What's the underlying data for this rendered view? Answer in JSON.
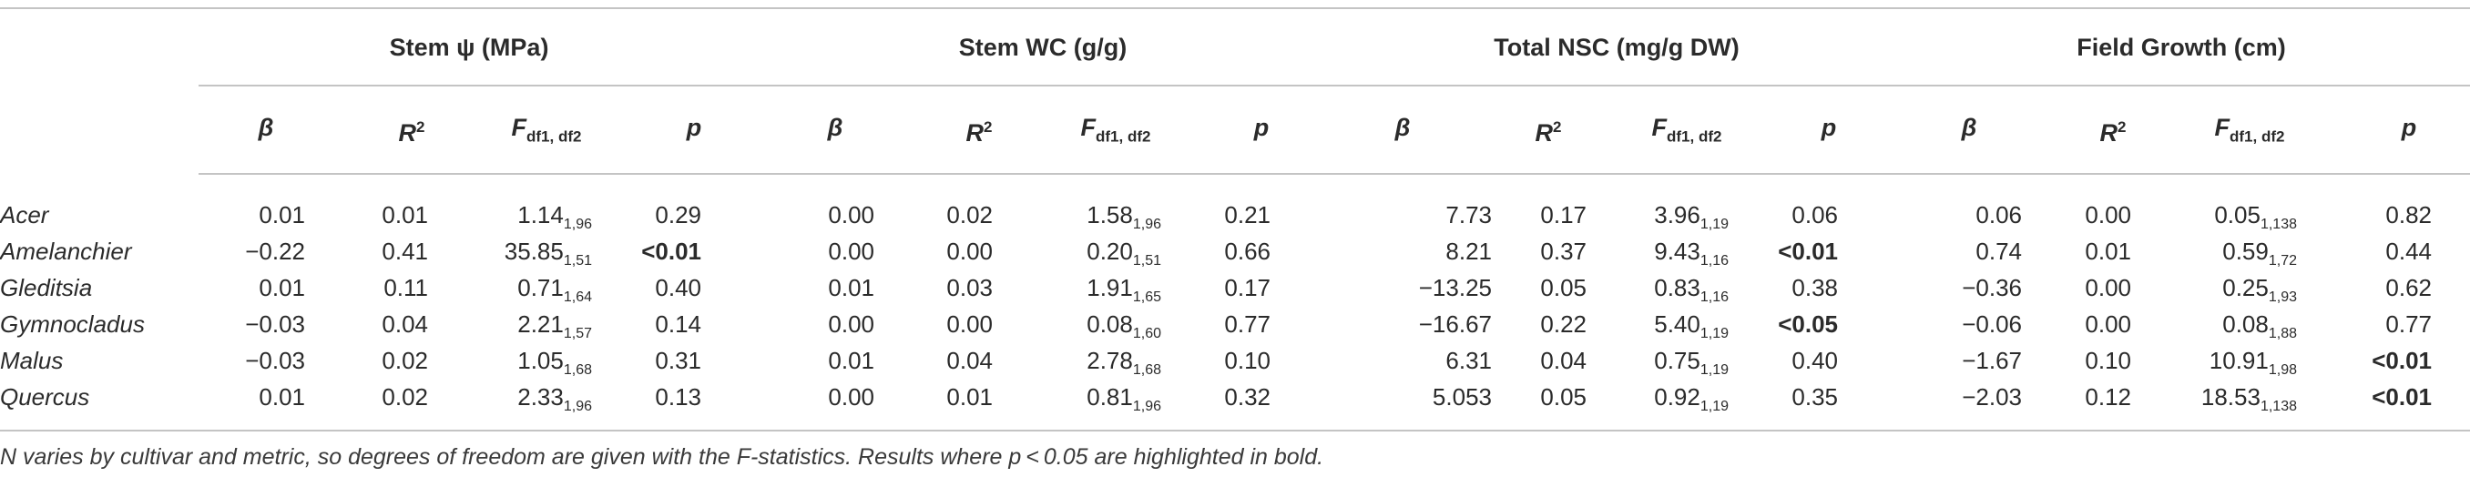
{
  "groups": [
    {
      "label": "Stem ψ  (MPa)"
    },
    {
      "label": "Stem WC (g/g)"
    },
    {
      "label": "Total NSC (mg/g DW)"
    },
    {
      "label": "Field Growth (cm)"
    }
  ],
  "col_headers": {
    "beta": "β",
    "r": "R",
    "r_sup": "2",
    "f": "F",
    "f_sub": "df1, df2",
    "p": "p"
  },
  "rows": [
    {
      "name": "Acer",
      "cells": [
        {
          "v": "0.01"
        },
        {
          "v": "0.01"
        },
        {
          "v": "1.14",
          "s": "1,96"
        },
        {
          "v": "0.29"
        },
        {
          "v": "0.00"
        },
        {
          "v": "0.02"
        },
        {
          "v": "1.58",
          "s": "1,96"
        },
        {
          "v": "0.21"
        },
        {
          "v": "7.73"
        },
        {
          "v": "0.17"
        },
        {
          "v": "3.96",
          "s": "1,19"
        },
        {
          "v": "0.06"
        },
        {
          "v": "0.06"
        },
        {
          "v": "0.00"
        },
        {
          "v": "0.05",
          "s": "1,138"
        },
        {
          "v": "0.82"
        }
      ]
    },
    {
      "name": "Amelanchier",
      "cells": [
        {
          "v": "−0.22"
        },
        {
          "v": "0.41"
        },
        {
          "v": "35.85",
          "s": "1,51"
        },
        {
          "v": "<0.01",
          "b": true
        },
        {
          "v": "0.00"
        },
        {
          "v": "0.00"
        },
        {
          "v": "0.20",
          "s": "1,51"
        },
        {
          "v": "0.66"
        },
        {
          "v": "8.21"
        },
        {
          "v": "0.37"
        },
        {
          "v": "9.43",
          "s": "1,16"
        },
        {
          "v": "<0.01",
          "b": true
        },
        {
          "v": "0.74"
        },
        {
          "v": "0.01"
        },
        {
          "v": "0.59",
          "s": "1,72"
        },
        {
          "v": "0.44"
        }
      ]
    },
    {
      "name": "Gleditsia",
      "cells": [
        {
          "v": "0.01"
        },
        {
          "v": "0.11"
        },
        {
          "v": "0.71",
          "s": "1,64"
        },
        {
          "v": "0.40"
        },
        {
          "v": "0.01"
        },
        {
          "v": "0.03"
        },
        {
          "v": "1.91",
          "s": "1,65"
        },
        {
          "v": "0.17"
        },
        {
          "v": "−13.25"
        },
        {
          "v": "0.05"
        },
        {
          "v": "0.83",
          "s": "1,16"
        },
        {
          "v": "0.38"
        },
        {
          "v": "−0.36"
        },
        {
          "v": "0.00"
        },
        {
          "v": "0.25",
          "s": "1,93"
        },
        {
          "v": "0.62"
        }
      ]
    },
    {
      "name": "Gymnocladus",
      "cells": [
        {
          "v": "−0.03"
        },
        {
          "v": "0.04"
        },
        {
          "v": "2.21",
          "s": "1,57"
        },
        {
          "v": "0.14"
        },
        {
          "v": "0.00"
        },
        {
          "v": "0.00"
        },
        {
          "v": "0.08",
          "s": "1,60"
        },
        {
          "v": "0.77"
        },
        {
          "v": "−16.67"
        },
        {
          "v": "0.22"
        },
        {
          "v": "5.40",
          "s": "1,19"
        },
        {
          "v": "<0.05",
          "b": true
        },
        {
          "v": "−0.06"
        },
        {
          "v": "0.00"
        },
        {
          "v": "0.08",
          "s": "1,88"
        },
        {
          "v": "0.77"
        }
      ]
    },
    {
      "name": "Malus",
      "cells": [
        {
          "v": "−0.03"
        },
        {
          "v": "0.02"
        },
        {
          "v": "1.05",
          "s": "1,68"
        },
        {
          "v": "0.31"
        },
        {
          "v": "0.01"
        },
        {
          "v": "0.04"
        },
        {
          "v": "2.78",
          "s": "1,68"
        },
        {
          "v": "0.10"
        },
        {
          "v": "6.31"
        },
        {
          "v": "0.04"
        },
        {
          "v": "0.75",
          "s": "1,19"
        },
        {
          "v": "0.40"
        },
        {
          "v": "−1.67"
        },
        {
          "v": "0.10"
        },
        {
          "v": "10.91",
          "s": "1,98"
        },
        {
          "v": "<0.01",
          "b": true
        }
      ]
    },
    {
      "name": "Quercus",
      "cells": [
        {
          "v": "0.01"
        },
        {
          "v": "0.02"
        },
        {
          "v": "2.33",
          "s": "1,96"
        },
        {
          "v": "0.13"
        },
        {
          "v": "0.00"
        },
        {
          "v": "0.01"
        },
        {
          "v": "0.81",
          "s": "1,96"
        },
        {
          "v": "0.32"
        },
        {
          "v": "5.053"
        },
        {
          "v": "0.05"
        },
        {
          "v": "0.92",
          "s": "1,19"
        },
        {
          "v": "0.35"
        },
        {
          "v": "−2.03"
        },
        {
          "v": "0.12"
        },
        {
          "v": "18.53",
          "s": "1,138"
        },
        {
          "v": "<0.01",
          "b": true
        }
      ]
    }
  ],
  "footnote": "N varies by cultivar and metric, so degrees of freedom are given with the F-statistics. Results where p < 0.05 are highlighted in bold."
}
